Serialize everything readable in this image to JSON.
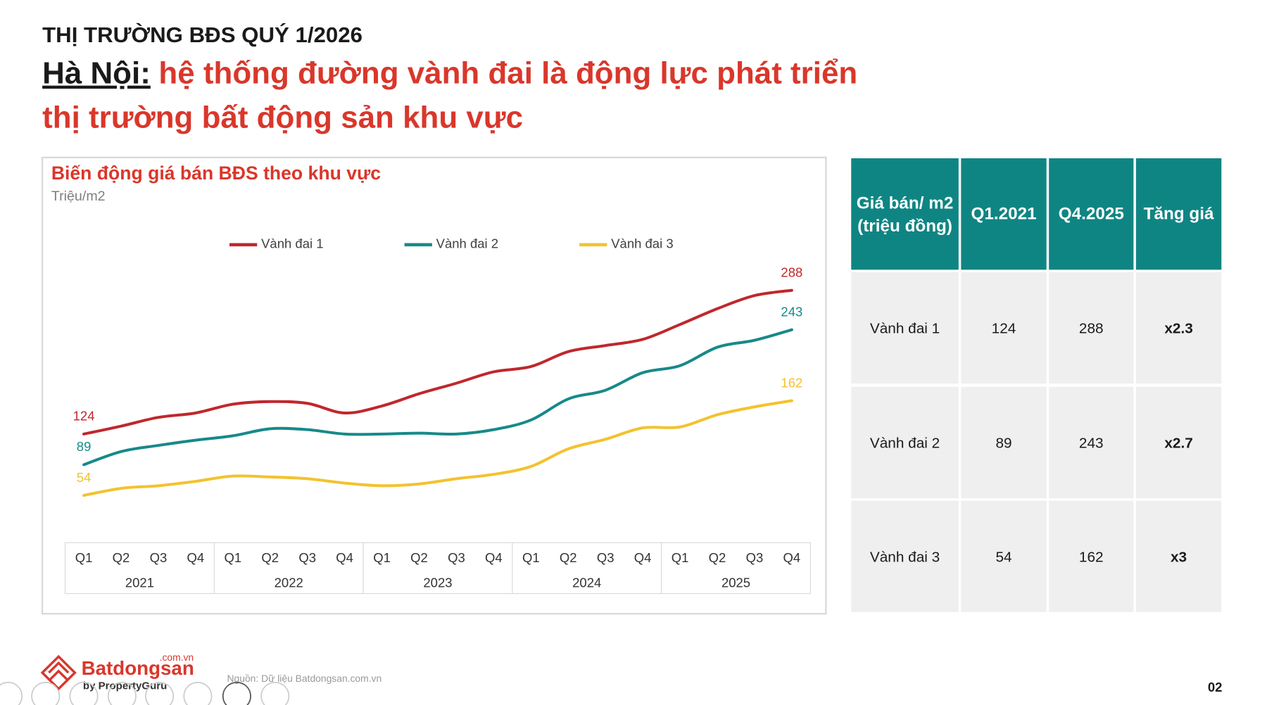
{
  "header": {
    "kicker": "THỊ TRƯỜNG BĐS QUÝ 1/2026",
    "city": "Hà Nội:",
    "headline_line1": "hệ thống đường vành đai là động lực phát triển",
    "headline_line2": "thị trường bất động sản khu vực"
  },
  "chart_data": {
    "type": "line",
    "title": "Biến động giá bán BĐS theo khu vực",
    "subtitle": "Triệu/m2",
    "legend": "top",
    "categories": [
      "Q1",
      "Q2",
      "Q3",
      "Q4",
      "Q1",
      "Q2",
      "Q3",
      "Q4",
      "Q1",
      "Q2",
      "Q3",
      "Q4",
      "Q1",
      "Q2",
      "Q3",
      "Q4",
      "Q1",
      "Q2",
      "Q3",
      "Q4"
    ],
    "years": [
      "2021",
      "2022",
      "2023",
      "2024",
      "2025"
    ],
    "series": [
      {
        "name": "Vành đai 1",
        "color": "#c0272d",
        "values": [
          124,
          133,
          143,
          148,
          158,
          161,
          159,
          148,
          156,
          170,
          182,
          195,
          201,
          218,
          225,
          232,
          249,
          267,
          282,
          288
        ]
      },
      {
        "name": "Vành đai 2",
        "color": "#17898a",
        "values": [
          89,
          104,
          111,
          117,
          122,
          130,
          129,
          124,
          124,
          125,
          124,
          129,
          140,
          164,
          174,
          194,
          202,
          223,
          231,
          243
        ]
      },
      {
        "name": "Vành đai 3",
        "color": "#f3c22f",
        "values": [
          54,
          62,
          65,
          70,
          76,
          75,
          73,
          68,
          65,
          67,
          73,
          78,
          87,
          107,
          118,
          131,
          132,
          146,
          155,
          162
        ]
      }
    ]
  },
  "table": {
    "header": [
      [
        "Giá bán/ m2",
        "(triệu đồng)"
      ],
      "Q1.2021",
      "Q4.2025",
      "Tăng giá"
    ],
    "rows": [
      [
        "Vành đai 1",
        124,
        288,
        "x2.3"
      ],
      [
        "Vành đai 2",
        89,
        243,
        "x2.7"
      ],
      [
        "Vành đai 3",
        54,
        162,
        "x3"
      ]
    ]
  },
  "footer": {
    "brand": "Batdongsan",
    "brand_domain": ".com.vn",
    "brand_by": "by PropertyGuru",
    "source": "Nguồn: Dữ liệu Batdongsan.com.vn",
    "page": "02"
  }
}
